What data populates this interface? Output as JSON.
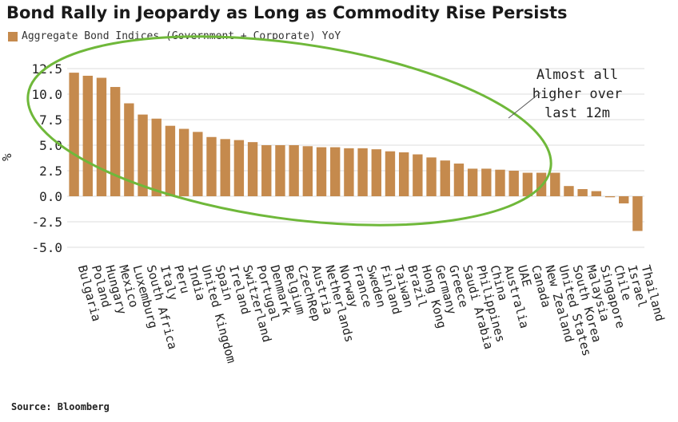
{
  "title": "Bond Rally in Jeopardy as Long as Commodity Rise Persists",
  "legend_label": "Aggregate Bond Indices (Government + Corporate) YoY",
  "source": "Source: Bloomberg",
  "colors": {
    "bar": "#c58a4d",
    "ellipse": "#6fb83a",
    "grid": "#dcdcdc"
  },
  "chart_data": {
    "type": "bar",
    "title": "Bond Rally in Jeopardy as Long as Commodity Rise Persists",
    "ylabel": "%",
    "ylim": [
      -6.25,
      13.75
    ],
    "yticks": [
      12.5,
      10.0,
      7.5,
      5.0,
      2.5,
      0.0,
      -2.5,
      -5.0
    ],
    "ytick_labels": [
      "12.5",
      "10.0",
      "7.5",
      "5.0",
      "2.5",
      "0.0",
      "-2.5",
      "-5.0"
    ],
    "grid": true,
    "legend": "top-left",
    "categories": [
      "Bulgaria",
      "Poland",
      "Hungary",
      "Mexico",
      "Luxemburg",
      "South Africa",
      "Italy",
      "Peru",
      "India",
      "United Kingdom",
      "Spain",
      "Ireland",
      "Switzerland",
      "Portugal",
      "Denmark",
      "Belgium",
      "CzechRep",
      "Austria",
      "Netherlands",
      "Norway",
      "France",
      "Sweden",
      "Finland",
      "Taiwan",
      "Brazil",
      "Hong Kong",
      "Germany",
      "Greece",
      "Saudi Arabia",
      "Philippines",
      "China",
      "Australia",
      "UAE",
      "Canada",
      "New Zealand",
      "United States",
      "South Korea",
      "Malaysia",
      "Singapore",
      "Chile",
      "Israel",
      "Thailand"
    ],
    "series": [
      {
        "name": "Aggregate Bond Indices (Government + Corporate) YoY",
        "values": [
          12.1,
          11.8,
          11.6,
          10.7,
          9.1,
          8.0,
          7.6,
          6.9,
          6.6,
          6.3,
          5.8,
          5.6,
          5.5,
          5.3,
          5.0,
          5.0,
          5.0,
          4.9,
          4.8,
          4.8,
          4.7,
          4.7,
          4.6,
          4.4,
          4.3,
          4.1,
          3.8,
          3.5,
          3.2,
          2.7,
          2.7,
          2.6,
          2.5,
          2.3,
          2.3,
          2.3,
          1.0,
          0.7,
          0.5,
          -0.1,
          -0.7,
          -3.4
        ]
      }
    ],
    "annotation": [
      "Almost all",
      "higher over",
      "last 12m"
    ]
  }
}
